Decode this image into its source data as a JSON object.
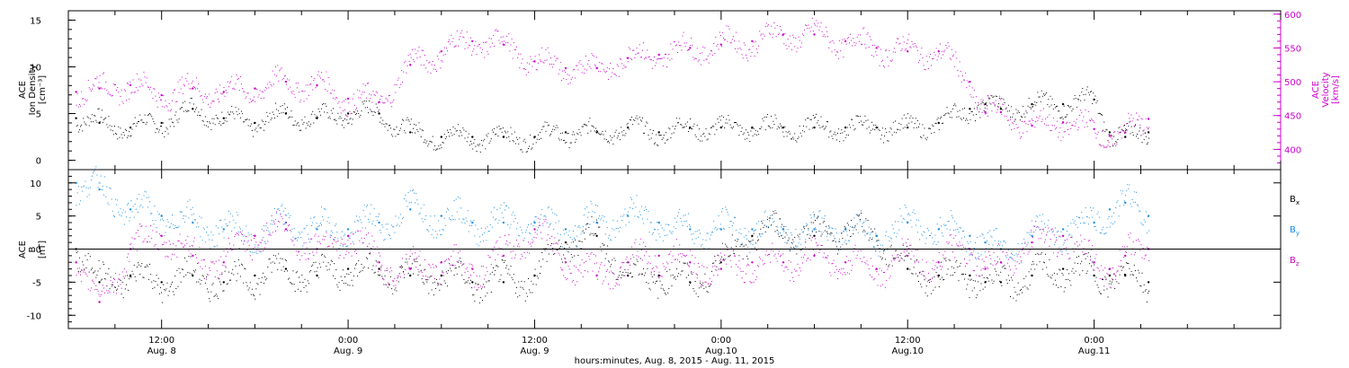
{
  "colors": {
    "black": "#000000",
    "magenta": "#cc00cc",
    "blue": "#1a8fe6"
  },
  "xlabel": "hours:minutes, Aug.  8, 2015 - Aug. 11, 2015",
  "chart_data": [
    {
      "type": "scatter",
      "panel": "top",
      "xlim": [
        6,
        84
      ],
      "x_ticks": [
        {
          "x": 12,
          "line1": "12:00",
          "line2": "Aug. 8"
        },
        {
          "x": 24,
          "line1": "0:00",
          "line2": "Aug. 9"
        },
        {
          "x": 36,
          "line1": "12:00",
          "line2": "Aug. 9"
        },
        {
          "x": 48,
          "line1": "0:00",
          "line2": "Aug.10"
        },
        {
          "x": 60,
          "line1": "12:00",
          "line2": "Aug.10"
        },
        {
          "x": 72,
          "line1": "0:00",
          "line2": "Aug.11"
        }
      ],
      "y_left": {
        "lines": [
          "ACE",
          "Ion Density",
          "[cm⁻³]"
        ],
        "ylim": [
          -1,
          16
        ],
        "ticks": [
          0,
          5,
          10,
          15
        ]
      },
      "y_right": {
        "lines": [
          "ACE",
          "Velocity",
          "[km/s]"
        ],
        "ylim": [
          370,
          605
        ],
        "ticks": [
          400,
          450,
          500,
          550,
          600
        ]
      },
      "series": [
        {
          "axis": "left",
          "color": "#000000",
          "x": [
            6.5,
            8,
            10,
            12,
            14,
            16,
            18,
            20,
            22,
            24,
            26,
            28,
            30,
            32,
            34,
            36,
            38,
            40,
            42,
            44,
            46,
            48,
            50,
            52,
            54,
            56,
            58,
            60,
            62,
            64,
            65,
            66,
            68,
            70,
            72,
            73,
            74,
            75.5
          ],
          "y": [
            4.5,
            4,
            3.5,
            4,
            5.5,
            4.5,
            4,
            5,
            4.5,
            5,
            5,
            3,
            2.5,
            2.5,
            2.5,
            2.5,
            3,
            3,
            3.5,
            3,
            3.5,
            3.5,
            3.5,
            3.5,
            3.5,
            3.5,
            3.5,
            3.5,
            4,
            5.5,
            6,
            5.5,
            6,
            6,
            6.5,
            3,
            2.5,
            3
          ]
        },
        {
          "axis": "right",
          "color": "#cc00cc",
          "x": [
            6.5,
            8,
            10,
            12,
            14,
            16,
            18,
            20,
            22,
            24,
            26,
            28,
            30,
            32,
            34,
            36,
            38,
            40,
            42,
            44,
            46,
            48,
            50,
            52,
            54,
            56,
            58,
            60,
            62,
            64,
            65,
            66,
            68,
            70,
            72,
            73,
            74,
            75.5
          ],
          "y": [
            485,
            490,
            495,
            480,
            490,
            485,
            490,
            500,
            495,
            475,
            470,
            525,
            545,
            560,
            555,
            530,
            520,
            520,
            535,
            540,
            550,
            555,
            560,
            570,
            570,
            560,
            550,
            545,
            545,
            500,
            455,
            455,
            435,
            440,
            430,
            420,
            425,
            445
          ]
        }
      ]
    },
    {
      "type": "scatter",
      "panel": "bottom",
      "xlim": [
        6,
        84
      ],
      "y_left": {
        "lines": [
          "ACE",
          "B",
          "[nT]"
        ],
        "ylim": [
          -12,
          12
        ],
        "ticks": [
          -10,
          -5,
          0,
          5,
          10
        ]
      },
      "legend": [
        {
          "label": "B",
          "sub": "x",
          "color": "#000000"
        },
        {
          "label": "B",
          "sub": "y",
          "color": "#1a8fe6"
        },
        {
          "label": "B",
          "sub": "z",
          "color": "#cc00cc"
        }
      ],
      "series": [
        {
          "name": "Bx",
          "color": "#000000",
          "x": [
            6.5,
            8,
            10,
            12,
            14,
            16,
            18,
            20,
            22,
            24,
            26,
            28,
            30,
            32,
            34,
            36,
            38,
            40,
            42,
            44,
            46,
            48,
            50,
            52,
            54,
            56,
            58,
            60,
            62,
            64,
            65,
            66,
            68,
            70,
            72,
            73,
            74,
            75.5
          ],
          "y": [
            0,
            -5,
            -4,
            -5,
            -4,
            -5,
            -4,
            -3,
            -4,
            -3,
            -3,
            -4,
            -4,
            -5,
            -5,
            -4,
            1,
            2,
            -4,
            -4,
            -5,
            -2,
            2,
            3,
            2,
            3,
            2,
            -3,
            -4,
            -4,
            -5,
            -5,
            -4,
            -3,
            -4,
            -4,
            -4,
            -5
          ]
        },
        {
          "name": "By",
          "color": "#1a8fe6",
          "x": [
            6.5,
            8,
            10,
            12,
            14,
            16,
            18,
            20,
            22,
            24,
            26,
            28,
            30,
            32,
            34,
            36,
            38,
            40,
            42,
            44,
            46,
            48,
            50,
            52,
            54,
            56,
            58,
            60,
            62,
            64,
            65,
            66,
            68,
            70,
            72,
            73,
            74,
            75.5
          ],
          "y": [
            10,
            9,
            6,
            5,
            4,
            3,
            2,
            4,
            3,
            3,
            4,
            6,
            5,
            4,
            4,
            4,
            3,
            4,
            5,
            4,
            3,
            3,
            3,
            3,
            3,
            3,
            2,
            4,
            3,
            2,
            1,
            0,
            2,
            3,
            4,
            6,
            7,
            5
          ]
        },
        {
          "name": "Bz",
          "color": "#cc00cc",
          "x": [
            6.5,
            8,
            10,
            12,
            14,
            16,
            18,
            20,
            22,
            24,
            26,
            28,
            30,
            32,
            34,
            36,
            38,
            40,
            42,
            44,
            46,
            48,
            50,
            52,
            54,
            56,
            58,
            60,
            62,
            64,
            65,
            66,
            68,
            70,
            72,
            73,
            74,
            75.5
          ],
          "y": [
            -2,
            -8,
            0,
            2,
            -1,
            -2,
            2,
            3,
            0,
            2,
            -2,
            -3,
            -2,
            -3,
            -1,
            3,
            -2,
            -4,
            -2,
            -1,
            -2,
            -3,
            -2,
            -2,
            -1,
            -2,
            -3,
            -1,
            -2,
            0,
            -3,
            -2,
            1,
            2,
            -2,
            -3,
            -1,
            0
          ]
        }
      ]
    }
  ]
}
